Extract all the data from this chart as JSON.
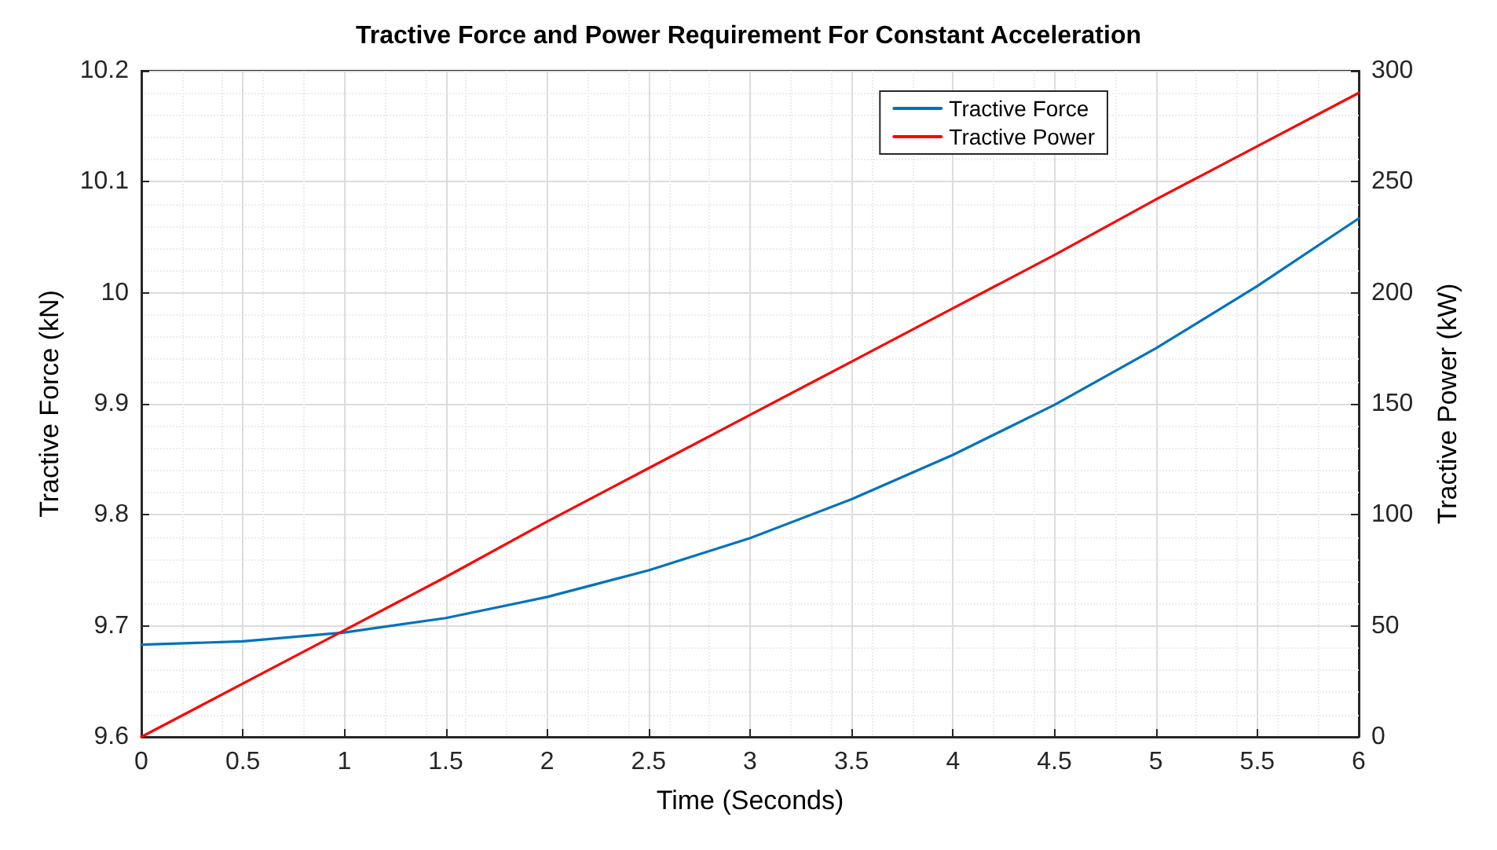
{
  "chart_data": {
    "type": "line",
    "title": "Tractive Force and Power Requirement For Constant Acceleration",
    "xlabel": "Time (Seconds)",
    "ylabel": "Tractive Force (kN)",
    "y2label": "Tractive Power (kW)",
    "x": [
      0,
      0.5,
      1,
      1.5,
      2,
      2.5,
      3,
      3.5,
      4,
      4.5,
      5,
      5.5,
      6
    ],
    "series": [
      {
        "name": "Tractive Force",
        "color": "#0072bd",
        "values": [
          9.683,
          9.686,
          9.694,
          9.707,
          9.726,
          9.75,
          9.779,
          9.814,
          9.854,
          9.899,
          9.95,
          10.006,
          10.067
        ]
      },
      {
        "name": "Tractive Power",
        "color": "#ff0000",
        "axis": "y2",
        "values": [
          0,
          24,
          48,
          72,
          97,
          121,
          145,
          169,
          193,
          217,
          242,
          266,
          290
        ]
      }
    ],
    "xlim": [
      0,
      6
    ],
    "xticks": [
      0,
      0.5,
      1,
      1.5,
      2,
      2.5,
      3,
      3.5,
      4,
      4.5,
      5,
      5.5,
      6
    ],
    "ylim": [
      9.6,
      10.2
    ],
    "yticks": [
      9.6,
      9.7,
      9.8,
      9.9,
      10,
      10.1,
      10.2
    ],
    "y2lim": [
      0,
      300
    ],
    "y2ticks": [
      0,
      50,
      100,
      150,
      200,
      250,
      300
    ],
    "grid": true,
    "legend": "top right",
    "marker": "none",
    "line_style": "solid"
  }
}
